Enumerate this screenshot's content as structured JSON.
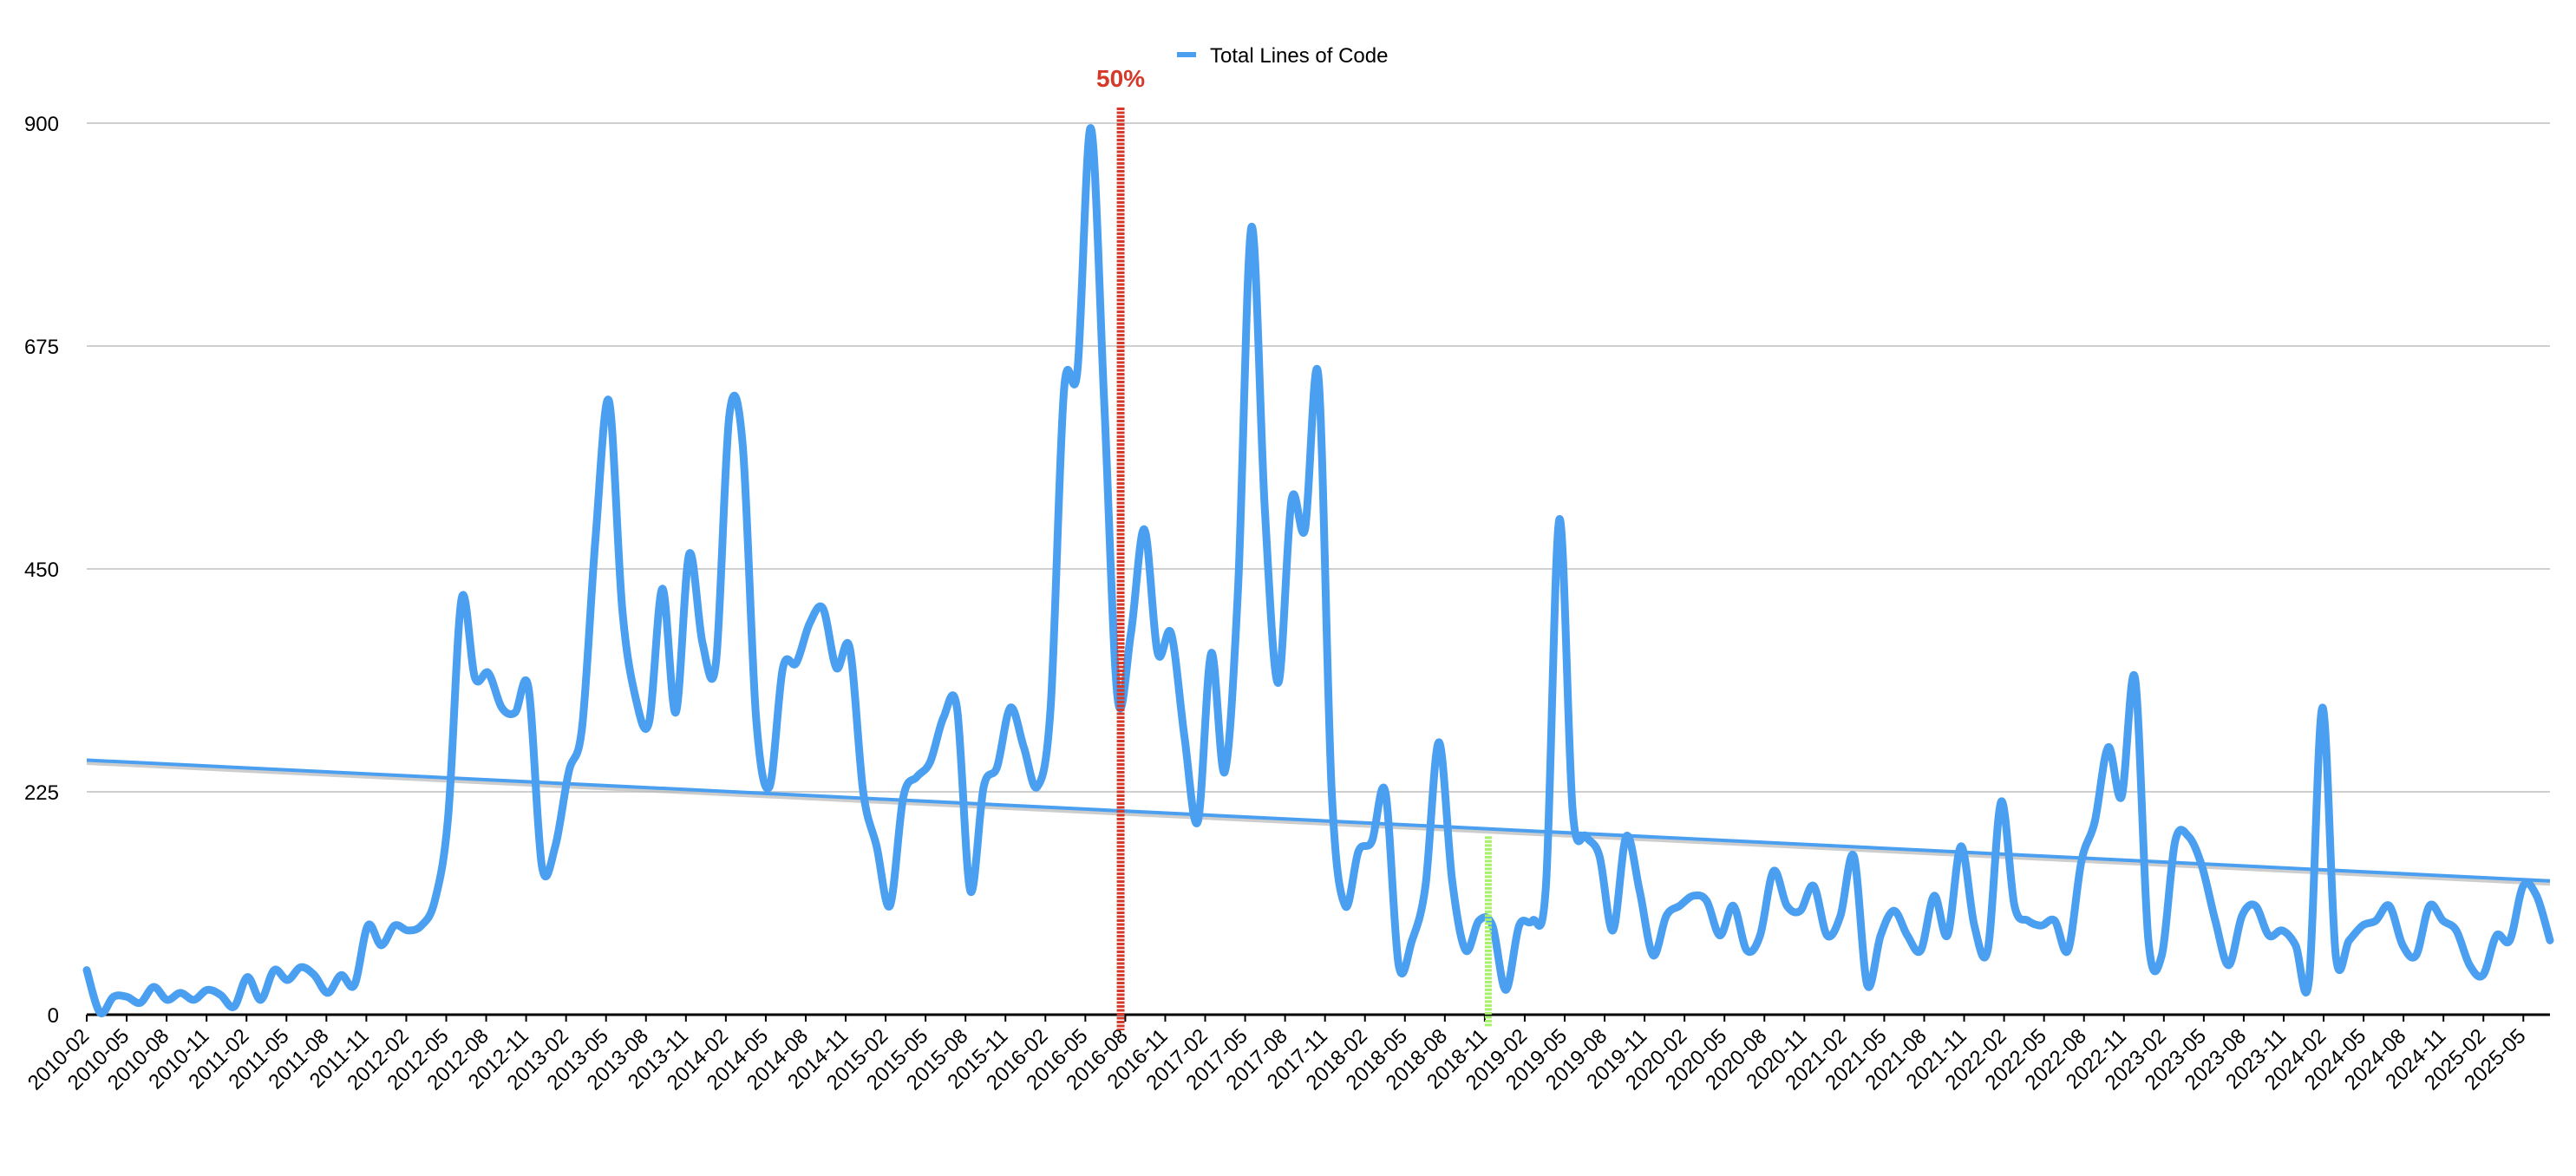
{
  "chart_data": {
    "type": "line",
    "title": "",
    "xlabel": "",
    "ylabel": "",
    "ylim": [
      0,
      900
    ],
    "yticks": [
      0,
      225,
      450,
      675,
      900
    ],
    "ytick_labels": [
      "0",
      "225",
      "450",
      "675",
      "900"
    ],
    "grid": true,
    "legend_position": "top-center",
    "x_start": "2010-02",
    "x_end": "2025-07",
    "xtick_labels": [
      "2010-02",
      "2010-05",
      "2010-08",
      "2010-11",
      "2011-02",
      "2011-05",
      "2011-08",
      "2011-11",
      "2012-02",
      "2012-05",
      "2012-08",
      "2012-11",
      "2013-02",
      "2013-05",
      "2013-08",
      "2013-11",
      "2014-02",
      "2014-05",
      "2014-08",
      "2014-11",
      "2015-02",
      "2015-05",
      "2015-08",
      "2015-11",
      "2016-02",
      "2016-05",
      "2016-08",
      "2016-11",
      "2017-02",
      "2017-05",
      "2017-08",
      "2017-11",
      "2018-02",
      "2018-05",
      "2018-08",
      "2018-11",
      "2019-02",
      "2019-05",
      "2019-08",
      "2019-11",
      "2020-02",
      "2020-05",
      "2020-08",
      "2020-11",
      "2021-02",
      "2021-05",
      "2021-08",
      "2021-11",
      "2022-02",
      "2022-05",
      "2022-08",
      "2022-11",
      "2023-02",
      "2023-05",
      "2023-08",
      "2023-11",
      "2024-02",
      "2024-05",
      "2024-08",
      "2024-11",
      "2025-02",
      "2025-05"
    ],
    "series": [
      {
        "name": "Total Lines of Code",
        "color": "#4a9ff0",
        "values": [
          45,
          2,
          18,
          18,
          12,
          28,
          15,
          22,
          15,
          25,
          20,
          8,
          38,
          15,
          45,
          35,
          48,
          40,
          22,
          40,
          30,
          90,
          70,
          90,
          85,
          90,
          115,
          200,
          420,
          340,
          345,
          310,
          305,
          330,
          150,
          170,
          245,
          290,
          480,
          620,
          410,
          320,
          295,
          430,
          305,
          465,
          375,
          355,
          605,
          575,
          300,
          230,
          350,
          355,
          395,
          410,
          350,
          370,
          225,
          170,
          110,
          220,
          240,
          255,
          300,
          310,
          125,
          230,
          250,
          310,
          270,
          230,
          310,
          630,
          650,
          895,
          620,
          320,
          385,
          490,
          365,
          385,
          280,
          195,
          365,
          245,
          430,
          795,
          510,
          335,
          520,
          490,
          645,
          225,
          110,
          165,
          175,
          225,
          50,
          75,
          130,
          275,
          135,
          65,
          95,
          90,
          25,
          90,
          95,
          130,
          500,
          205,
          180,
          160,
          85,
          180,
          125,
          60,
          100,
          110,
          120,
          115,
          80,
          110,
          65,
          80,
          145,
          110,
          105,
          130,
          80,
          100,
          160,
          30,
          80,
          105,
          80,
          65,
          120,
          80,
          170,
          90,
          65,
          215,
          110,
          95,
          90,
          95,
          65,
          155,
          195,
          270,
          220,
          340,
          75,
          60,
          175,
          180,
          150,
          95,
          50,
          100,
          110,
          80,
          85,
          70,
          35,
          310,
          60,
          75,
          90,
          95,
          110,
          70,
          60,
          110,
          95,
          85,
          50,
          40,
          80,
          75,
          130,
          120,
          75
        ]
      }
    ],
    "trendline": {
      "color": "#4a9ff0",
      "start_value": 257,
      "end_value": 135
    },
    "annotations": [
      {
        "label": "50%",
        "color": "#d43a2a",
        "x_date": "2016-07",
        "kind": "vertical-marker"
      },
      {
        "label": "",
        "color": "#a6f06a",
        "x_date": "2018-11",
        "kind": "vertical-marker"
      }
    ]
  }
}
